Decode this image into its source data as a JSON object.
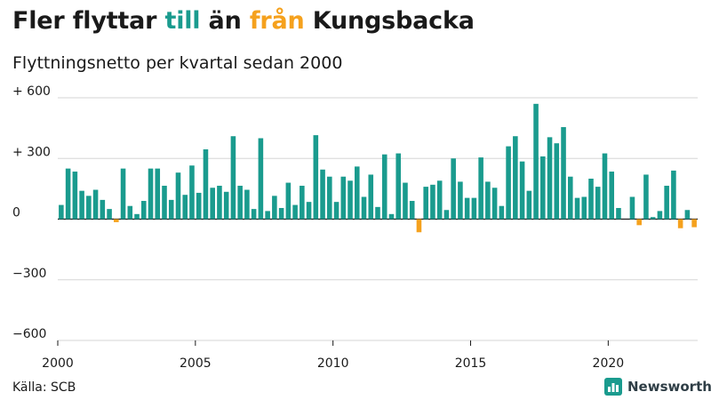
{
  "title": {
    "part1": "Fler flyttar ",
    "word_in": "till",
    "part2": " än ",
    "word_out": "från",
    "part3": " Kungsbacka"
  },
  "subtitle": "Flyttningsnetto per kvartal sedan 2000",
  "source": "Källa: SCB",
  "brand": {
    "name": "Newsworthy",
    "icon": "bar-chart-logo-icon"
  },
  "colors": {
    "positive": "#1a9b8e",
    "negative": "#f5a11d",
    "text": "#1a1a1a",
    "grid": "#d6d6d6"
  },
  "chart_data": {
    "type": "bar",
    "title": "Fler flyttar till än från Kungsbacka",
    "subtitle": "Flyttningsnetto per kvartal sedan 2000",
    "start": "2000 Q1",
    "y_ticks": [
      "+ 600",
      "+ 300",
      "0",
      "−300",
      "−600"
    ],
    "y_tick_values": [
      600,
      300,
      0,
      -300,
      -600
    ],
    "ylim": [
      -600,
      600
    ],
    "x_ticks": [
      "2000",
      "2005",
      "2010",
      "2015",
      "2020"
    ],
    "x_tick_years": [
      2000,
      2005,
      2010,
      2015,
      2020
    ],
    "grid": true,
    "values": [
      70,
      250,
      235,
      140,
      115,
      145,
      95,
      50,
      -15,
      250,
      65,
      25,
      90,
      250,
      250,
      165,
      95,
      230,
      120,
      265,
      130,
      345,
      155,
      165,
      135,
      410,
      165,
      145,
      50,
      400,
      40,
      115,
      55,
      180,
      70,
      165,
      85,
      415,
      245,
      210,
      85,
      210,
      190,
      260,
      110,
      220,
      60,
      320,
      25,
      325,
      180,
      90,
      -65,
      160,
      170,
      190,
      45,
      300,
      185,
      105,
      105,
      305,
      185,
      155,
      65,
      360,
      410,
      285,
      140,
      570,
      310,
      405,
      375,
      455,
      210,
      105,
      110,
      200,
      160,
      325,
      235,
      55,
      0,
      110,
      -30,
      220,
      10,
      40,
      165,
      240,
      -45,
      45,
      -40
    ]
  }
}
